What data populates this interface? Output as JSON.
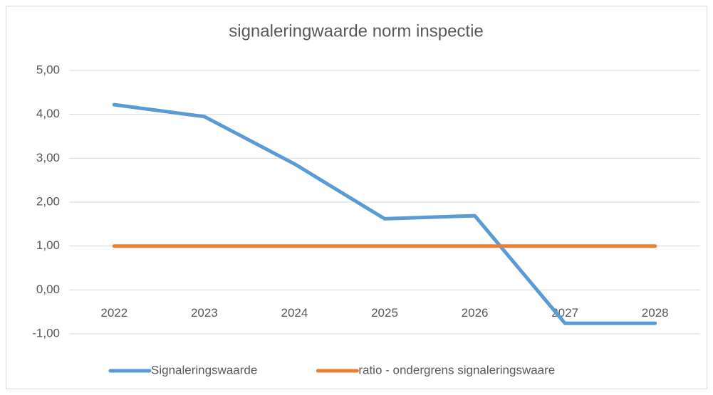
{
  "chart_data": {
    "type": "line",
    "title": "signaleringwaarde norm inspectie",
    "categories": [
      "2022",
      "2023",
      "2024",
      "2025",
      "2026",
      "2027",
      "2028"
    ],
    "series": [
      {
        "name": "Signaleringswaarde",
        "color": "#5b9bd5",
        "values": [
          4.22,
          3.95,
          2.87,
          1.62,
          1.69,
          -0.76,
          -0.76
        ]
      },
      {
        "name": "ratio - ondergrens signaleringswaare",
        "color": "#ed7d31",
        "values": [
          1,
          1,
          1,
          1,
          1,
          1,
          1
        ]
      }
    ],
    "ylim": [
      -1,
      5
    ],
    "yticks": [
      {
        "value": -1,
        "label": "-1,00"
      },
      {
        "value": 0,
        "label": "0,00"
      },
      {
        "value": 1,
        "label": "1,00"
      },
      {
        "value": 2,
        "label": "2,00"
      },
      {
        "value": 3,
        "label": "3,00"
      },
      {
        "value": 4,
        "label": "4,00"
      },
      {
        "value": 5,
        "label": "5,00"
      }
    ],
    "grid": true,
    "legend": "bottom"
  }
}
